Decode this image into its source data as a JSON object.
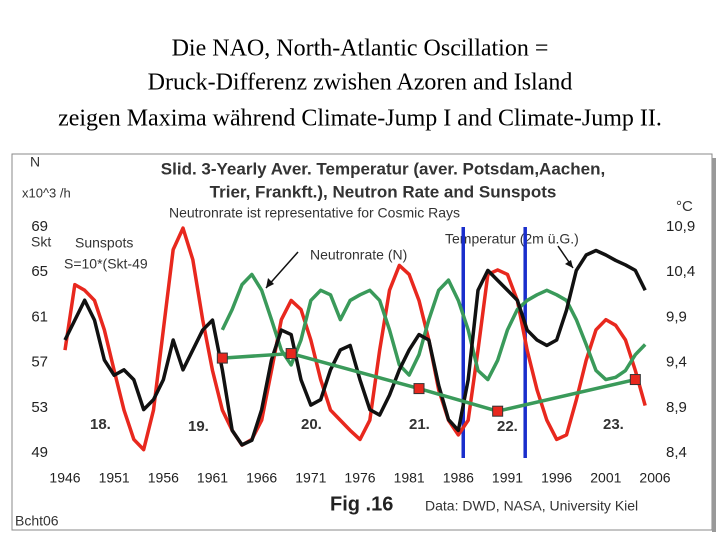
{
  "slide_title": [
    "Die NAO, North-Atlantic Oscillation =",
    "Druck-Differenz zwishen Azoren and Island",
    "zeigen Maxima während Climate-Jump I and Climate-Jump II."
  ],
  "chart_data": {
    "type": "line",
    "title": [
      "Slid. 3-Yearly Aver. Temperatur (aver. Potsdam,Aachen,",
      "Trier, Frankft.), Neutron Rate and Sunspots"
    ],
    "subtitle": "Neutronrate ist representative for Cosmic Rays",
    "y_label": [
      "N",
      "x10^3 /h",
      "Skt"
    ],
    "y2_label": "°C",
    "annotations": {
      "sunspot_formula": "S=10*(Skt-49",
      "cycles": [
        "18.",
        "19.",
        "20.",
        "21.",
        "22.",
        "23."
      ]
    },
    "footer": {
      "figure": "Fig .16",
      "source": "Data: DWD, NASA, University Kiel",
      "author": "Bcht06"
    },
    "x": [
      1946,
      1947,
      1948,
      1949,
      1950,
      1951,
      1952,
      1953,
      1954,
      1955,
      1956,
      1957,
      1958,
      1959,
      1960,
      1961,
      1962,
      1963,
      1964,
      1965,
      1966,
      1967,
      1968,
      1969,
      1970,
      1971,
      1972,
      1973,
      1974,
      1975,
      1976,
      1977,
      1978,
      1979,
      1980,
      1981,
      1982,
      1983,
      1984,
      1985,
      1986,
      1987,
      1988,
      1989,
      1990,
      1991,
      1992,
      1993,
      1994,
      1995,
      1996,
      1997,
      1998,
      1999,
      2000,
      2001,
      2002,
      2003,
      2004,
      2005
    ],
    "series": [
      {
        "name": "Sunspots",
        "color": "#e8281e",
        "values": [
          58.1,
          63.9,
          63.4,
          62.5,
          59.9,
          56.3,
          52.8,
          50.2,
          49.3,
          52.8,
          59.9,
          67,
          68.9,
          66.1,
          60.8,
          56.3,
          52.8,
          51,
          49.7,
          50.2,
          51.9,
          56.3,
          60.8,
          62.5,
          61.7,
          59,
          55.5,
          52.8,
          51.9,
          51,
          50.2,
          51.9,
          58.1,
          63.4,
          65.6,
          64.8,
          62.5,
          59,
          54.6,
          51.9,
          50.6,
          51.9,
          58.1,
          64.8,
          65.2,
          64.8,
          62.5,
          58.1,
          54.6,
          51.9,
          50.2,
          50.6,
          53.7,
          57.2,
          59.9,
          60.8,
          60.3,
          59,
          56.3,
          53.2
        ]
      },
      {
        "name": "Neutronrate (N)",
        "color": "#3a9a5a",
        "values": [
          null,
          null,
          null,
          null,
          null,
          null,
          null,
          null,
          null,
          null,
          null,
          null,
          null,
          null,
          null,
          null,
          59.9,
          61.7,
          63.9,
          64.8,
          63.4,
          60.8,
          58.1,
          56.8,
          59,
          62.5,
          63.4,
          63,
          60.8,
          62.5,
          63,
          63.4,
          62.5,
          59.9,
          56.8,
          55.9,
          57.7,
          60.8,
          63.4,
          64.3,
          62.5,
          59.9,
          56.3,
          55.5,
          57.2,
          59.9,
          61.7,
          62.5,
          63,
          63.4,
          63,
          62.5,
          60.8,
          58.6,
          56.3,
          55.5,
          55.7,
          56.3,
          57.7,
          58.6
        ]
      },
      {
        "name": "Temperatur (2m ü.G.)",
        "color": "#111111",
        "axis": "y2",
        "values": [
          9.65,
          9.87,
          10.09,
          9.87,
          9.43,
          9.26,
          9.32,
          9.21,
          8.88,
          8.99,
          9.21,
          9.65,
          9.32,
          9.54,
          9.76,
          9.87,
          9.32,
          8.65,
          8.49,
          8.54,
          8.88,
          9.43,
          9.76,
          9.71,
          9.21,
          8.93,
          8.99,
          9.32,
          9.54,
          9.59,
          9.21,
          8.88,
          8.82,
          9.04,
          9.32,
          9.54,
          9.71,
          9.65,
          9.15,
          8.77,
          8.65,
          9.21,
          10.2,
          10.42,
          10.31,
          10.2,
          10.09,
          9.76,
          9.65,
          9.59,
          9.65,
          9.98,
          10.42,
          10.59,
          10.64,
          10.59,
          10.53,
          10.48,
          10.42,
          10.2
        ]
      },
      {
        "color": "#3a9a5a",
        "marker_color": "#e8281e",
        "x": [
          1962,
          1969,
          1982,
          1990,
          2004
        ],
        "values": [
          57.4,
          57.8,
          54.7,
          52.7,
          55.5
        ]
      }
    ],
    "vlines": [
      1986.5,
      1992.8
    ],
    "vline_color": "#1a2ecc",
    "xlim": [
      1946,
      2006
    ],
    "xticks": [
      1946,
      1951,
      1956,
      1961,
      1966,
      1971,
      1976,
      1981,
      1986,
      1991,
      1996,
      2001,
      2006
    ],
    "ylim": [
      49,
      69
    ],
    "yticks": [
      49,
      53,
      57,
      61,
      65,
      69
    ],
    "y2lim": [
      8.4,
      10.9
    ],
    "y2ticks": [
      {
        "value": 8.4,
        "label": "8,4"
      },
      {
        "value": 8.9,
        "label": "8,9"
      },
      {
        "value": 9.4,
        "label": "9,4"
      },
      {
        "value": 9.9,
        "label": "9,9"
      },
      {
        "value": 10.4,
        "label": "10,4"
      },
      {
        "value": 10.9,
        "label": "10,9"
      }
    ]
  }
}
